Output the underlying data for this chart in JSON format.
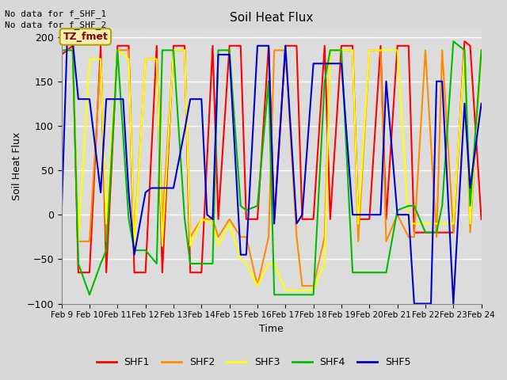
{
  "title": "Soil Heat Flux",
  "ylabel": "Soil Heat Flux",
  "xlabel": "Time",
  "text_line1": "No data for f_SHF_1",
  "text_line2": "No data for f_SHF_2",
  "annotation_box": "TZ_fmet",
  "ylim": [
    -100,
    210
  ],
  "yticks": [
    -100,
    -50,
    0,
    50,
    100,
    150,
    200
  ],
  "bg_color": "#dcdcdc",
  "series_colors": {
    "SHF1": "#ff0000",
    "SHF2": "#ff8c00",
    "SHF3": "#ffff00",
    "SHF4": "#00bb00",
    "SHF5": "#0000cc"
  },
  "xtick_labels": [
    "Feb 9",
    "Feb 10",
    "Feb 11",
    "Feb 12",
    "Feb 13",
    "Feb 14",
    "Feb 15",
    "Feb 16",
    "Feb 17",
    "Feb 18",
    "Feb 19",
    "Feb 20",
    "Feb 21",
    "Feb 22",
    "Feb 23",
    "Feb 24"
  ],
  "SHF1_x": [
    9.0,
    9.4,
    9.6,
    10.0,
    10.4,
    10.6,
    11.0,
    11.4,
    11.6,
    12.0,
    12.4,
    12.6,
    13.0,
    13.4,
    13.6,
    14.0,
    14.4,
    14.6,
    15.0,
    15.4,
    15.6,
    16.0,
    16.4,
    16.6,
    17.0,
    17.4,
    17.6,
    18.0,
    18.4,
    18.6,
    19.0,
    19.4,
    19.6,
    20.0,
    20.4,
    20.6,
    21.0,
    21.4,
    21.6,
    22.0,
    22.4,
    22.6,
    23.0,
    23.4,
    23.6,
    24.0
  ],
  "SHF1_y": [
    180,
    190,
    -65,
    -65,
    190,
    -65,
    190,
    190,
    -65,
    -65,
    190,
    -65,
    190,
    190,
    -65,
    -65,
    190,
    -5,
    190,
    190,
    -5,
    -5,
    190,
    -5,
    190,
    190,
    -5,
    -5,
    190,
    -5,
    190,
    190,
    -5,
    -5,
    190,
    -5,
    190,
    190,
    -20,
    -20,
    -20,
    -20,
    -20,
    195,
    190,
    -5
  ],
  "SHF2_x": [
    9.0,
    9.4,
    9.6,
    10.0,
    10.4,
    10.6,
    11.0,
    11.4,
    11.6,
    12.0,
    12.4,
    12.6,
    13.0,
    13.4,
    13.6,
    14.0,
    14.4,
    14.6,
    15.0,
    15.4,
    15.6,
    16.0,
    16.4,
    16.6,
    17.0,
    17.4,
    17.6,
    18.0,
    18.4,
    18.6,
    19.0,
    19.4,
    19.6,
    20.0,
    20.4,
    20.6,
    21.0,
    21.4,
    21.6,
    22.0,
    22.4,
    22.6,
    23.0,
    23.4,
    23.6,
    24.0
  ],
  "SHF2_y": [
    185,
    185,
    -30,
    -30,
    175,
    -30,
    185,
    185,
    -30,
    175,
    175,
    -10,
    185,
    185,
    -25,
    -5,
    -5,
    -25,
    -5,
    -25,
    -25,
    -80,
    -25,
    185,
    185,
    -25,
    -80,
    -80,
    -25,
    185,
    185,
    185,
    -30,
    185,
    185,
    -30,
    0,
    -25,
    -25,
    185,
    -25,
    185,
    -20,
    185,
    -20,
    185
  ],
  "SHF3_x": [
    9.0,
    9.4,
    9.6,
    10.0,
    10.4,
    10.6,
    11.0,
    11.4,
    11.6,
    12.0,
    12.4,
    12.6,
    13.0,
    13.4,
    13.6,
    14.0,
    14.4,
    14.6,
    15.0,
    15.4,
    15.6,
    16.0,
    16.4,
    16.6,
    17.0,
    17.4,
    17.6,
    18.0,
    18.4,
    18.6,
    19.0,
    19.4,
    19.6,
    20.0,
    20.4,
    20.6,
    21.0,
    21.4,
    21.6,
    22.0,
    22.4,
    22.6,
    23.0,
    23.4,
    23.6,
    24.0
  ],
  "SHF3_y": [
    185,
    185,
    -30,
    175,
    175,
    -10,
    185,
    175,
    -35,
    175,
    175,
    -35,
    185,
    185,
    -35,
    -5,
    -10,
    -35,
    -10,
    -50,
    -55,
    -80,
    -55,
    -55,
    -85,
    -85,
    -85,
    -85,
    -55,
    185,
    185,
    185,
    -10,
    185,
    185,
    185,
    185,
    -10,
    -10,
    -10,
    -10,
    -10,
    -10,
    185,
    -10,
    185
  ],
  "SHF4_x": [
    9.0,
    9.4,
    9.6,
    10.0,
    10.4,
    10.6,
    11.0,
    11.4,
    11.6,
    12.0,
    12.4,
    12.6,
    13.0,
    13.4,
    13.6,
    14.0,
    14.4,
    14.6,
    15.0,
    15.4,
    15.6,
    16.0,
    16.4,
    16.6,
    17.0,
    17.4,
    17.6,
    18.0,
    18.4,
    18.6,
    19.0,
    19.4,
    19.6,
    20.0,
    20.4,
    20.6,
    21.0,
    21.4,
    21.6,
    22.0,
    22.4,
    22.6,
    23.0,
    23.4,
    23.6,
    24.0
  ],
  "SHF4_y": [
    185,
    185,
    -55,
    -90,
    -55,
    -40,
    185,
    -5,
    -40,
    -40,
    -55,
    185,
    185,
    -5,
    -55,
    -55,
    -55,
    185,
    185,
    10,
    5,
    10,
    150,
    -90,
    -90,
    -90,
    -90,
    -90,
    150,
    185,
    185,
    -65,
    -65,
    -65,
    -65,
    -65,
    5,
    10,
    10,
    -20,
    -20,
    10,
    195,
    185,
    10,
    185
  ],
  "SHF5_x": [
    9.0,
    9.2,
    9.4,
    9.6,
    10.0,
    10.4,
    10.6,
    11.0,
    11.2,
    11.4,
    11.6,
    12.0,
    12.2,
    12.4,
    12.6,
    13.0,
    13.4,
    13.6,
    14.0,
    14.2,
    14.4,
    14.6,
    15.0,
    15.4,
    15.6,
    16.0,
    16.4,
    16.6,
    17.0,
    17.4,
    17.6,
    18.0,
    18.4,
    18.6,
    19.0,
    19.4,
    19.6,
    20.0,
    20.4,
    20.6,
    21.0,
    21.4,
    21.6,
    22.0,
    22.2,
    22.4,
    22.6,
    23.0,
    23.4,
    23.6,
    24.0
  ],
  "SHF5_y": [
    0,
    195,
    195,
    130,
    130,
    25,
    130,
    130,
    130,
    25,
    -45,
    25,
    30,
    30,
    30,
    30,
    95,
    130,
    130,
    0,
    -5,
    180,
    180,
    -45,
    -45,
    190,
    190,
    -10,
    190,
    -10,
    0,
    170,
    170,
    170,
    170,
    0,
    0,
    0,
    0,
    150,
    0,
    0,
    -100,
    -100,
    -100,
    150,
    150,
    -100,
    125,
    30,
    125
  ]
}
